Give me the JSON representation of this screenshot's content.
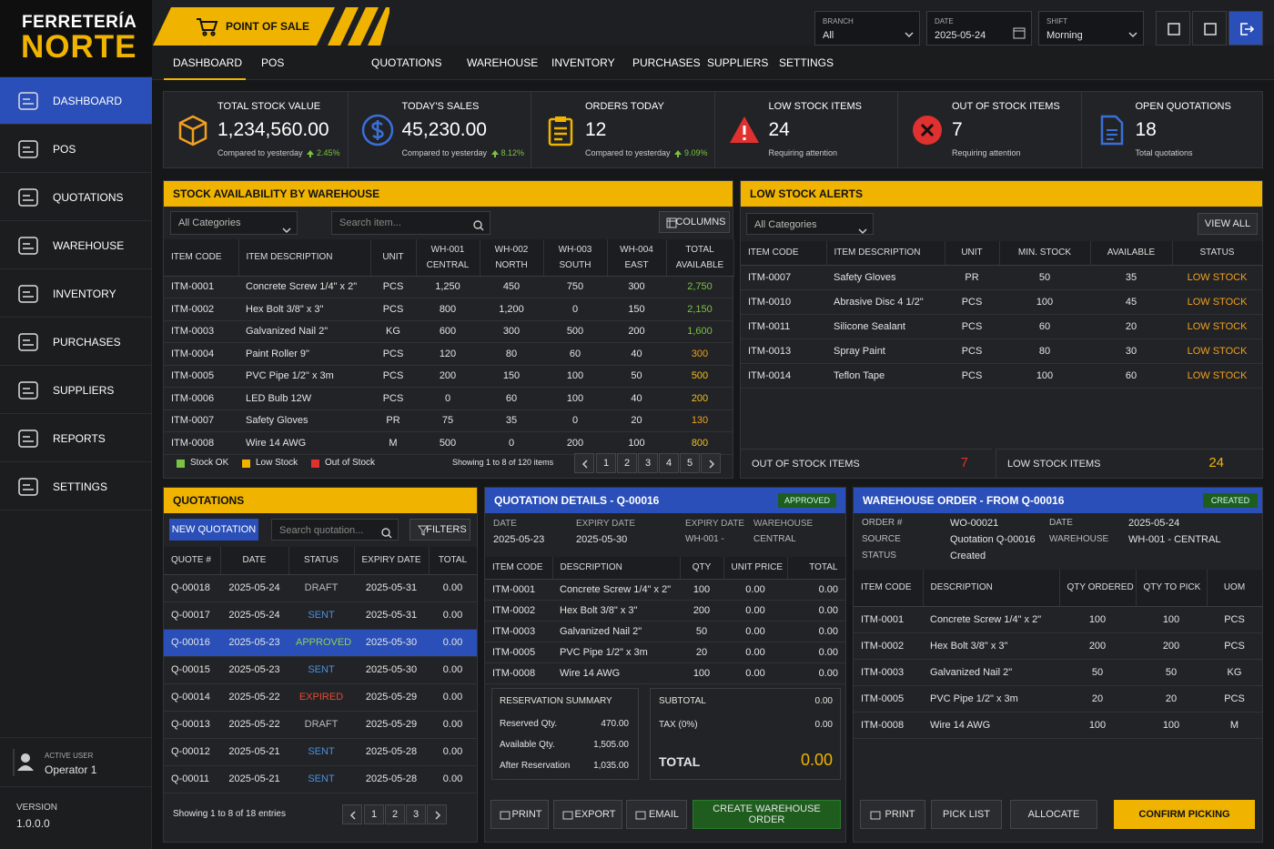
{
  "brand": {
    "line1": "FERRETERÍA",
    "line2": "NORTE"
  },
  "header": {
    "module": "POINT OF SALE",
    "filters": [
      {
        "label": "BRANCH",
        "value": "All"
      },
      {
        "label": "DATE",
        "value": "2025-05-24"
      },
      {
        "label": "SHIFT",
        "value": "Morning"
      }
    ]
  },
  "tabs": [
    "DASHBOARD",
    "POS",
    "QUOTATIONS",
    "WAREHOUSE",
    "INVENTORY",
    "PURCHASES",
    "SUPPLIERS",
    "SETTINGS"
  ],
  "sidebar": {
    "items": [
      "DASHBOARD",
      "POS",
      "QUOTATIONS",
      "WAREHOUSE",
      "INVENTORY",
      "PURCHASES",
      "SUPPLIERS",
      "REPORTS",
      "SETTINGS"
    ],
    "user_label": "ACTIVE USER",
    "user": "Operator 1",
    "version_label": "VERSION",
    "version": "1.0.0.0"
  },
  "kpis": [
    {
      "label": "TOTAL STOCK VALUE",
      "value": "1,234,560.00",
      "note": "Compared to yesterday",
      "change": "2.45%",
      "color": "#f0a020"
    },
    {
      "label": "TODAY'S SALES",
      "value": "45,230.00",
      "note": "Compared to yesterday",
      "change": "8.12%",
      "color": "#3a6fd8"
    },
    {
      "label": "ORDERS TODAY",
      "value": "12",
      "note": "Compared to yesterday",
      "change": "9.09%",
      "color": "#f0b400"
    },
    {
      "label": "LOW STOCK ITEMS",
      "value": "24",
      "note": "Requiring attention",
      "color": "#e03030"
    },
    {
      "label": "OUT OF STOCK ITEMS",
      "value": "7",
      "note": "Requiring attention",
      "color": "#e03030"
    },
    {
      "label": "OPEN QUOTATIONS",
      "value": "18",
      "note": "Total quotations",
      "color": "#3a6fd8"
    }
  ],
  "stock": {
    "title": "STOCK AVAILABILITY BY WAREHOUSE",
    "category": "All Categories",
    "search": "Search item...",
    "columns": "COLUMNS",
    "headers": [
      "ITEM CODE",
      "ITEM DESCRIPTION",
      "UNIT",
      [
        "WH-001",
        "CENTRAL"
      ],
      [
        "WH-002",
        "NORTH"
      ],
      [
        "WH-003",
        "SOUTH"
      ],
      [
        "WH-004",
        "EAST"
      ],
      [
        "TOTAL",
        "AVAILABLE"
      ]
    ],
    "rows": [
      [
        "ITM-0001",
        "Concrete Screw 1/4\" x 2\"",
        "PCS",
        "1,250",
        "450",
        "750",
        "300",
        "2,750"
      ],
      [
        "ITM-0002",
        "Hex Bolt 3/8\" x 3\"",
        "PCS",
        "800",
        "1,200",
        "0",
        "150",
        "2,150"
      ],
      [
        "ITM-0003",
        "Galvanized Nail 2\"",
        "KG",
        "600",
        "300",
        "500",
        "200",
        "1,600"
      ],
      [
        "ITM-0004",
        "Paint Roller 9\"",
        "PCS",
        "120",
        "80",
        "60",
        "40",
        "300"
      ],
      [
        "ITM-0005",
        "PVC Pipe 1/2\" x 3m",
        "PCS",
        "200",
        "150",
        "100",
        "50",
        "500"
      ],
      [
        "ITM-0006",
        "LED Bulb 12W",
        "PCS",
        "0",
        "60",
        "100",
        "40",
        "200"
      ],
      [
        "ITM-0007",
        "Safety Gloves",
        "PR",
        "75",
        "35",
        "0",
        "20",
        "130"
      ],
      [
        "ITM-0008",
        "Wire 14 AWG",
        "M",
        "500",
        "0",
        "200",
        "100",
        "800"
      ]
    ],
    "total_colors": [
      "#7cc242",
      "#7cc242",
      "#7cc242",
      "#f0a020",
      "#f0c020",
      "#f0c020",
      "#f0a020",
      "#f0c020"
    ],
    "legend": [
      {
        "name": "Stock OK",
        "color": "#7cc242"
      },
      {
        "name": "Low Stock",
        "color": "#f0b400"
      },
      {
        "name": "Out of Stock",
        "color": "#e03030"
      }
    ],
    "showing": "Showing 1 to 8 of 120 items",
    "pages": [
      "1",
      "2",
      "3",
      "4",
      "5"
    ]
  },
  "low_stock": {
    "title": "LOW STOCK ALERTS",
    "category": "All Categories",
    "view_all": "VIEW ALL",
    "headers": [
      "ITEM CODE",
      "ITEM DESCRIPTION",
      "UNIT",
      "MIN. STOCK",
      "AVAILABLE",
      "STATUS"
    ],
    "rows": [
      [
        "ITM-0007",
        "Safety Gloves",
        "PR",
        "50",
        "35",
        "LOW STOCK"
      ],
      [
        "ITM-0010",
        "Abrasive Disc 4 1/2\"",
        "PCS",
        "100",
        "45",
        "LOW STOCK"
      ],
      [
        "ITM-0011",
        "Silicone Sealant",
        "PCS",
        "60",
        "20",
        "LOW STOCK"
      ],
      [
        "ITM-0013",
        "Spray Paint",
        "PCS",
        "80",
        "30",
        "LOW STOCK"
      ],
      [
        "ITM-0014",
        "Teflon Tape",
        "PCS",
        "100",
        "60",
        "LOW STOCK"
      ]
    ],
    "status_color": "#f0a020",
    "footer": [
      {
        "label": "OUT OF STOCK ITEMS",
        "value": "7",
        "color": "#e03030"
      },
      {
        "label": "LOW STOCK ITEMS",
        "value": "24",
        "color": "#f0b400"
      }
    ]
  },
  "quotations": {
    "title": "QUOTATIONS",
    "new": "NEW QUOTATION",
    "search": "Search quotation...",
    "filters": "FILTERS",
    "headers": [
      "QUOTE #",
      "DATE",
      "STATUS",
      "EXPIRY DATE",
      "TOTAL"
    ],
    "rows": [
      [
        "Q-00018",
        "2025-05-24",
        "DRAFT",
        "2025-05-31",
        "0.00"
      ],
      [
        "Q-00017",
        "2025-05-24",
        "SENT",
        "2025-05-31",
        "0.00"
      ],
      [
        "Q-00016",
        "2025-05-23",
        "APPROVED",
        "2025-05-30",
        "0.00"
      ],
      [
        "Q-00015",
        "2025-05-23",
        "SENT",
        "2025-05-30",
        "0.00"
      ],
      [
        "Q-00014",
        "2025-05-22",
        "EXPIRED",
        "2025-05-29",
        "0.00"
      ],
      [
        "Q-00013",
        "2025-05-22",
        "DRAFT",
        "2025-05-29",
        "0.00"
      ],
      [
        "Q-00012",
        "2025-05-21",
        "SENT",
        "2025-05-28",
        "0.00"
      ],
      [
        "Q-00011",
        "2025-05-21",
        "SENT",
        "2025-05-28",
        "0.00"
      ]
    ],
    "status_colors": [
      "#bbbbbb",
      "#4a90e2",
      "#8fd14f",
      "#4a90e2",
      "#e84a30",
      "#bbbbbb",
      "#4a90e2",
      "#4a90e2"
    ],
    "selected_row": 2,
    "showing": "Showing 1 to 8 of 18 entries",
    "pages": [
      "1",
      "2",
      "3"
    ]
  },
  "details": {
    "title": "QUOTATION DETAILS - Q-00016",
    "badge": "APPROVED",
    "fields": [
      {
        "label": "DATE",
        "value": "2025-05-23"
      },
      {
        "label": "EXPIRY DATE",
        "value": "2025-05-30"
      },
      {
        "label": "EXPIRY DATE",
        "value": "WH-001 -"
      },
      {
        "label": "WAREHOUSE",
        "value": "CENTRAL"
      }
    ],
    "headers": [
      "ITEM CODE",
      "DESCRIPTION",
      "QTY",
      "UNIT PRICE",
      "TOTAL"
    ],
    "rows": [
      [
        "ITM-0001",
        "Concrete Screw 1/4\" x 2\"",
        "100",
        "0.00",
        "0.00"
      ],
      [
        "ITM-0002",
        "Hex Bolt 3/8\" x 3\"",
        "200",
        "0.00",
        "0.00"
      ],
      [
        "ITM-0003",
        "Galvanized Nail 2\"",
        "50",
        "0.00",
        "0.00"
      ],
      [
        "ITM-0005",
        "PVC Pipe 1/2\" x 3m",
        "20",
        "0.00",
        "0.00"
      ],
      [
        "ITM-0008",
        "Wire 14 AWG",
        "100",
        "0.00",
        "0.00"
      ]
    ],
    "reservation": {
      "title": "RESERVATION SUMMARY",
      "rows": [
        {
          "label": "Reserved Qty.",
          "value": "470.00"
        },
        {
          "label": "Available Qty.",
          "value": "1,505.00"
        },
        {
          "label": "After Reservation",
          "value": "1,035.00"
        }
      ]
    },
    "totals": [
      {
        "label": "SUBTOTAL",
        "value": "0.00"
      },
      {
        "label": "TAX (0%)",
        "value": "0.00"
      },
      {
        "label": "TOTAL",
        "value": "0.00"
      }
    ],
    "buttons": [
      "PRINT",
      "EXPORT",
      "EMAIL",
      "CREATE WAREHOUSE ORDER"
    ]
  },
  "warehouse_order": {
    "title": "WAREHOUSE ORDER - FROM Q-00016",
    "badge": "CREATED",
    "fields": [
      {
        "label": "ORDER #",
        "value": "WO-00021"
      },
      {
        "label": "DATE",
        "value": "2025-05-24"
      },
      {
        "label": "SOURCE",
        "value": "Quotation Q-00016"
      },
      {
        "label": "WAREHOUSE",
        "value": "WH-001 - CENTRAL"
      },
      {
        "label": "STATUS",
        "value": "Created"
      }
    ],
    "headers": [
      "ITEM CODE",
      "DESCRIPTION",
      "QTY ORDERED",
      "QTY TO PICK",
      "UOM"
    ],
    "rows": [
      [
        "ITM-0001",
        "Concrete Screw 1/4\" x 2\"",
        "100",
        "100",
        "PCS"
      ],
      [
        "ITM-0002",
        "Hex Bolt 3/8\" x 3\"",
        "200",
        "200",
        "PCS"
      ],
      [
        "ITM-0003",
        "Galvanized Nail 2\"",
        "50",
        "50",
        "KG"
      ],
      [
        "ITM-0005",
        "PVC Pipe 1/2\" x 3m",
        "20",
        "20",
        "PCS"
      ],
      [
        "ITM-0008",
        "Wire 14 AWG",
        "100",
        "100",
        "M"
      ]
    ],
    "buttons": [
      "PRINT",
      "PICK LIST",
      "ALLOCATE",
      "CONFIRM PICKING"
    ]
  }
}
